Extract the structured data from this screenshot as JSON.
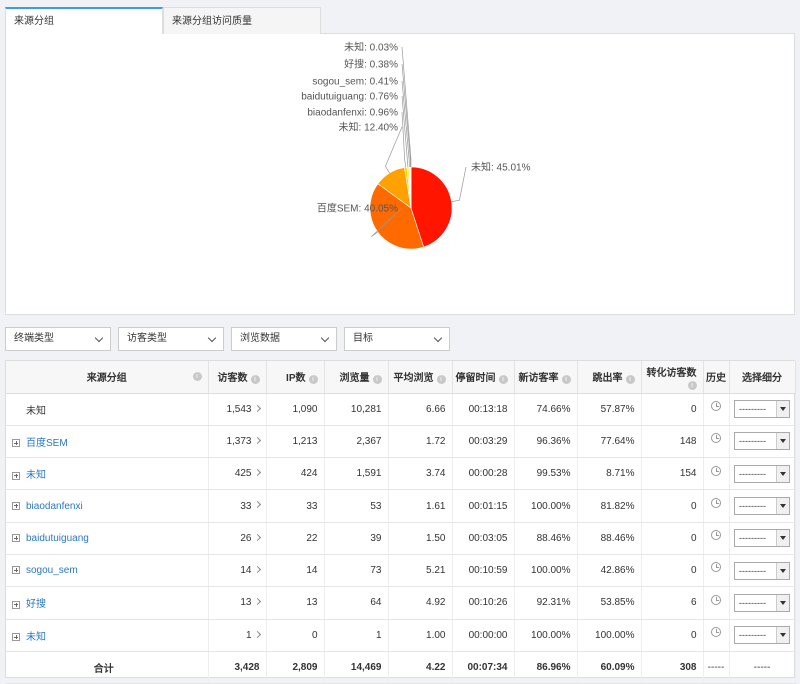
{
  "tabs": [
    {
      "label": "来源分组"
    },
    {
      "label": "来源分组访问质量"
    }
  ],
  "chart_data": {
    "type": "pie",
    "slices": [
      {
        "label": "未知",
        "value": 45.01,
        "display": "未知: 45.01%",
        "color": "#ff1500"
      },
      {
        "label": "百度SEM",
        "value": 40.05,
        "display": "百度SEM: 40.05%",
        "color": "#ff6a00"
      },
      {
        "label": "未知",
        "value": 12.4,
        "display": "未知: 12.40%",
        "color": "#ffa200"
      },
      {
        "label": "biaodanfenxi",
        "value": 0.96,
        "display": "biaodanfenxi: 0.96%",
        "color": "#ffd000"
      },
      {
        "label": "baidutuiguang",
        "value": 0.76,
        "display": "baidutuiguang: 0.76%",
        "color": "#ffe45c"
      },
      {
        "label": "sogou_sem",
        "value": 0.41,
        "display": "sogou_sem: 0.41%",
        "color": "#fff0a0"
      },
      {
        "label": "好搜",
        "value": 0.38,
        "display": "好搜: 0.38%",
        "color": "#ffe000"
      },
      {
        "label": "未知",
        "value": 0.03,
        "display": "未知: 0.03%",
        "color": "#ffcc33"
      }
    ]
  },
  "filters": [
    {
      "label": "终端类型"
    },
    {
      "label": "访客类型"
    },
    {
      "label": "浏览数据"
    },
    {
      "label": "目标"
    }
  ],
  "table": {
    "headers": {
      "group": "来源分组",
      "visitors": "访客数",
      "ip": "IP数",
      "pv": "浏览量",
      "avg_pv": "平均浏览",
      "duration": "停留时间",
      "new_rate": "新访客率",
      "bounce": "跳出率",
      "conv": "转化访客数",
      "history": "历史",
      "breakdown": "选择细分"
    },
    "select_placeholder": "---------",
    "rows": [
      {
        "name": "未知",
        "expandable": false,
        "visitors": "1,543",
        "ip": "1,090",
        "pv": "10,281",
        "avg_pv": "6.66",
        "duration": "00:13:18",
        "new_rate": "74.66%",
        "bounce": "57.87%",
        "conv": "0"
      },
      {
        "name": "百度SEM",
        "expandable": true,
        "visitors": "1,373",
        "ip": "1,213",
        "pv": "2,367",
        "avg_pv": "1.72",
        "duration": "00:03:29",
        "new_rate": "96.36%",
        "bounce": "77.64%",
        "conv": "148"
      },
      {
        "name": "未知",
        "expandable": true,
        "visitors": "425",
        "ip": "424",
        "pv": "1,591",
        "avg_pv": "3.74",
        "duration": "00:00:28",
        "new_rate": "99.53%",
        "bounce": "8.71%",
        "conv": "154"
      },
      {
        "name": "biaodanfenxi",
        "expandable": true,
        "visitors": "33",
        "ip": "33",
        "pv": "53",
        "avg_pv": "1.61",
        "duration": "00:01:15",
        "new_rate": "100.00%",
        "bounce": "81.82%",
        "conv": "0"
      },
      {
        "name": "baidutuiguang",
        "expandable": true,
        "visitors": "26",
        "ip": "22",
        "pv": "39",
        "avg_pv": "1.50",
        "duration": "00:03:05",
        "new_rate": "88.46%",
        "bounce": "88.46%",
        "conv": "0"
      },
      {
        "name": "sogou_sem",
        "expandable": true,
        "visitors": "14",
        "ip": "14",
        "pv": "73",
        "avg_pv": "5.21",
        "duration": "00:10:59",
        "new_rate": "100.00%",
        "bounce": "42.86%",
        "conv": "0"
      },
      {
        "name": "好搜",
        "expandable": true,
        "visitors": "13",
        "ip": "13",
        "pv": "64",
        "avg_pv": "4.92",
        "duration": "00:10:26",
        "new_rate": "92.31%",
        "bounce": "53.85%",
        "conv": "6"
      },
      {
        "name": "未知",
        "expandable": true,
        "visitors": "1",
        "ip": "0",
        "pv": "1",
        "avg_pv": "1.00",
        "duration": "00:00:00",
        "new_rate": "100.00%",
        "bounce": "100.00%",
        "conv": "0"
      }
    ],
    "total": {
      "label": "合计",
      "visitors": "3,428",
      "ip": "2,809",
      "pv": "14,469",
      "avg_pv": "4.22",
      "duration": "00:07:34",
      "new_rate": "86.96%",
      "bounce": "60.09%",
      "conv": "308",
      "history": "-----",
      "breakdown": "-----"
    }
  }
}
